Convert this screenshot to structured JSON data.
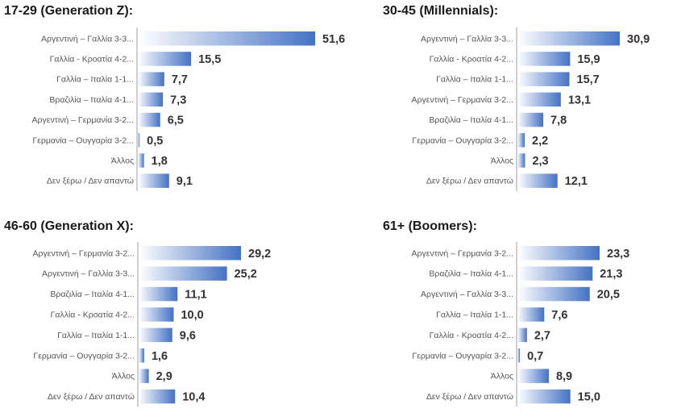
{
  "chart_data": [
    {
      "type": "bar",
      "orientation": "horizontal",
      "title": "17-29 (Generation Z):",
      "categories": [
        "Αργεντινή – Γαλλία 3-3...",
        "Γαλλία - Κροατία 4-2...",
        "Γαλλία – Ιταλία 1-1...",
        "Βραζιλία – Ιταλία 4-1...",
        "Αργεντινή – Γερμανία 3-2...",
        "Γερμανία – Ουγγαρία 3-2...",
        "Άλλος",
        "Δεν ξέρω / Δεν απαντώ"
      ],
      "values": [
        51.6,
        15.5,
        7.7,
        7.3,
        6.5,
        0.5,
        1.8,
        9.1
      ],
      "value_labels": [
        "51,6",
        "15,5",
        "7,7",
        "7,3",
        "6,5",
        "0,5",
        "1,8",
        "9,1"
      ],
      "xlim": [
        0,
        60
      ]
    },
    {
      "type": "bar",
      "orientation": "horizontal",
      "title": "30-45 (Millennials):",
      "categories": [
        "Αργεντινή – Γαλλία 3-3...",
        "Γαλλία - Κροατία 4-2...",
        "Γαλλία – Ιταλία 1-1...",
        "Αργεντινή – Γερμανία 3-2...",
        "Βραζιλία – Ιταλία 4-1...",
        "Γερμανία – Ουγγαρία 3-2...",
        "Άλλος",
        "Δεν ξέρω / Δεν απαντώ"
      ],
      "values": [
        30.9,
        15.9,
        15.7,
        13.1,
        7.8,
        2.2,
        2.3,
        12.1
      ],
      "value_labels": [
        "30,9",
        "15,9",
        "15,7",
        "13,1",
        "7,8",
        "2,2",
        "2,3",
        "12,1"
      ],
      "xlim": [
        0,
        35
      ]
    },
    {
      "type": "bar",
      "orientation": "horizontal",
      "title": "46-60 (Generation X):",
      "categories": [
        "Αργεντινή – Γερμανία 3-2...",
        "Αργεντινή – Γαλλία 3-3...",
        "Βραζιλία – Ιταλία 4-1...",
        "Γαλλία - Κροατία 4-2...",
        "Γαλλία – Ιταλία 1-1...",
        "Γερμανία – Ουγγαρία 3-2...",
        "Άλλος",
        "Δεν ξέρω / Δεν απαντώ"
      ],
      "values": [
        29.2,
        25.2,
        11.1,
        10.0,
        9.6,
        1.6,
        2.9,
        10.4
      ],
      "value_labels": [
        "29,2",
        "25,2",
        "11,1",
        "10,0",
        "9,6",
        "1,6",
        "2,9",
        "10,4"
      ],
      "xlim": [
        0,
        35
      ]
    },
    {
      "type": "bar",
      "orientation": "horizontal",
      "title": "61+ (Boomers):",
      "categories": [
        "Αργεντινή – Γερμανία 3-2...",
        "Βραζιλία – Ιταλία 4-1...",
        "Αργεντινή – Γαλλία 3-3...",
        "Γαλλία – Ιταλία 1-1...",
        "Γαλλία - Κροατία 4-2...",
        "Γερμανία – Ουγγαρία 3-2...",
        "Άλλος",
        "Δεν ξέρω / Δεν απαντώ"
      ],
      "values": [
        23.3,
        21.3,
        20.5,
        7.6,
        2.7,
        0.7,
        8.9,
        15.0
      ],
      "value_labels": [
        "23,3",
        "21,3",
        "20,5",
        "7,6",
        "2,7",
        "0,7",
        "8,9",
        "15,0"
      ],
      "xlim": [
        0,
        30
      ]
    }
  ],
  "colors": {
    "bar_dark": "#4472c4",
    "bar_light": "#ffffff",
    "axis": "#cfcfcf",
    "label": "#555555",
    "value": "#333333"
  }
}
